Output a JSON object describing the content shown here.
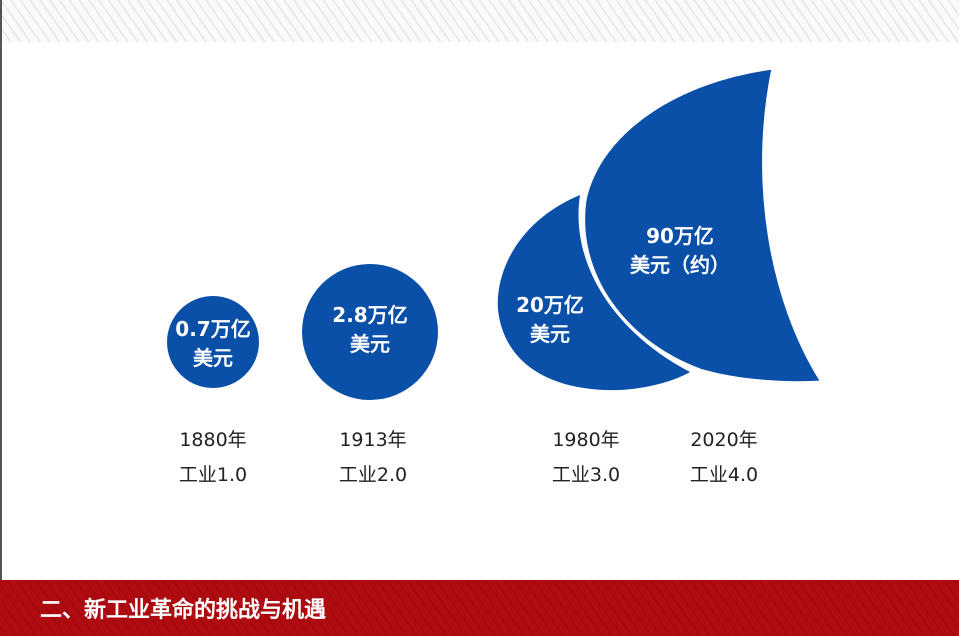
{
  "stages": [
    {
      "value_line1": "0.7万亿",
      "value_line2": "美元",
      "year": "1880年",
      "label": "工业1.0"
    },
    {
      "value_line1": "2.8万亿",
      "value_line2": "美元",
      "year": "1913年",
      "label": "工业2.0"
    },
    {
      "value_line1": "20万亿",
      "value_line2": "美元",
      "year": "1980年",
      "label": "工业3.0"
    },
    {
      "value_line1": "90万亿",
      "value_line2": "美元（约）",
      "year": "2020年",
      "label": "工业4.0"
    }
  ],
  "footer": {
    "title": "二、新工业革命的挑战与机遇"
  }
}
